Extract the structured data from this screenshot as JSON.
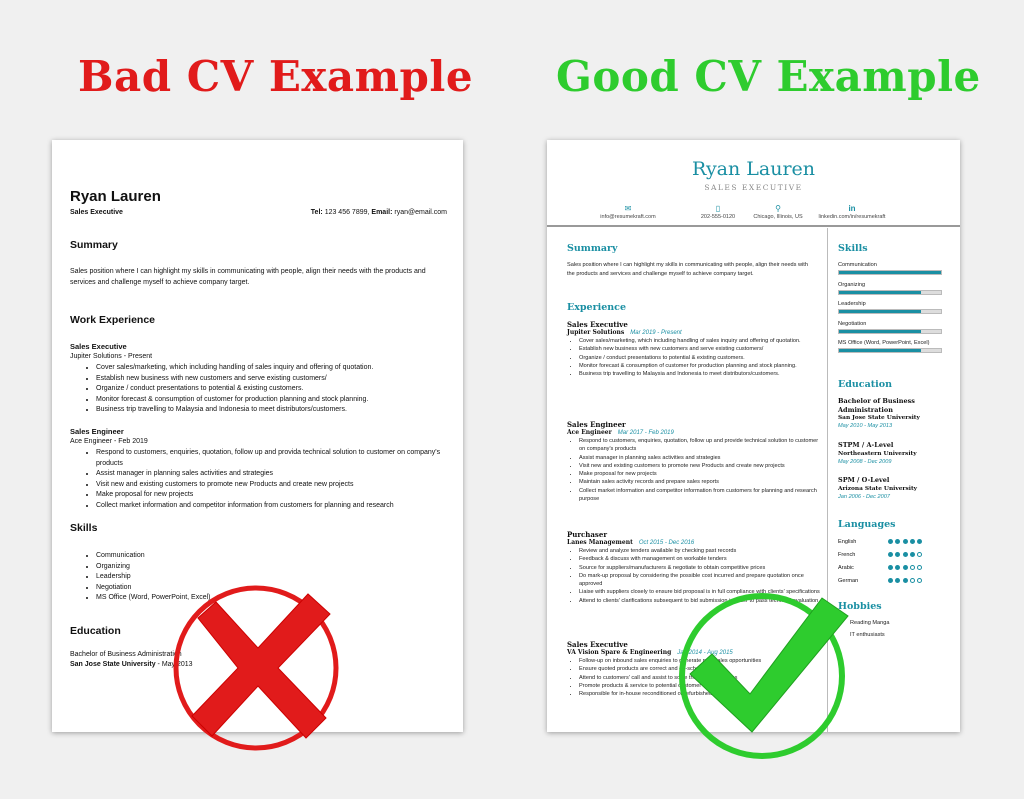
{
  "headlines": {
    "bad": "Bad CV Example",
    "good": "Good CV Example"
  },
  "colors": {
    "bad": "#e11b1b",
    "good": "#2ecc2e",
    "accent": "#1a8fa3"
  },
  "bad_cv": {
    "name": "Ryan Lauren",
    "role": "Sales Executive",
    "contact_tel_label": "Tel:",
    "contact_tel": "123 456 7899,",
    "contact_email_label": "Email:",
    "contact_email": "ryan@email.com",
    "summary_heading": "Summary",
    "summary_text": "Sales position where I can highlight my skills in communicating with people, align their needs with the products and services and challenge myself to achieve company target.",
    "work_heading": "Work Experience",
    "jobs": [
      {
        "title": "Sales Executive",
        "company_dates": "Jupiter Solutions  -  Present",
        "bullets": [
          "Cover sales/marketing, which including handling of sales inquiry and offering of quotation.",
          "Establish new business with new customers and serve existing customers/",
          "Organize / conduct presentations to potential & existing customers.",
          "Monitor forecast & consumption of customer for production planning and stock planning.",
          "Business trip travelling to Malaysia and Indonesia to meet distributors/customers."
        ]
      },
      {
        "title": "Sales Engineer",
        "company_dates": "Ace Engineer  -  Feb 2019",
        "bullets": [
          "Respond to customers, enquiries, quotation, follow up and provida technical solution to customer on company's products",
          "Assist manager in planning sales activities and strategies",
          "Visit new and existing customers to promote new Products and create new projects",
          "Make proposal for new projects",
          "Collect market information and competitor information from customers for planning and research"
        ]
      }
    ],
    "skills_heading": "Skills",
    "skills": [
      "Communication",
      "Organizing",
      "Leadership",
      "Negotiation",
      "MS Office (Word, PowerPoint, Excel)"
    ],
    "education_heading": "Education",
    "edu_degree": "Bachelor of Business Administration",
    "edu_school": "San Jose State University",
    "edu_date": "  -  May 2013"
  },
  "good_cv": {
    "name": "Ryan Lauren",
    "role": "SALES EXECUTIVE",
    "contact": [
      {
        "icon": "email-icon",
        "glyph": "✉",
        "text": "info@resumekraft.com"
      },
      {
        "icon": "phone-icon",
        "glyph": "▯",
        "text": "202-555-0120"
      },
      {
        "icon": "location-pin-icon",
        "glyph": "⚲",
        "text": "Chicago, Illinois, US"
      },
      {
        "icon": "linkedin-icon",
        "glyph": "in",
        "text": "linkedin.com/in/resumekraft"
      }
    ],
    "summary_heading": "Summary",
    "summary_text": "Sales position where I can highlight my skills in communicating with people, align their needs with the products and services and challenge myself to achieve company target.",
    "experience_heading": "Experience",
    "jobs": [
      {
        "title": "Sales Executive",
        "company": "Jupiter Solutions",
        "dates": "Mar 2019 - Present",
        "bullets": [
          "Cover sales/marketing, which including handling of sales inquiry and offering of quotation.",
          "Establish new business with new customers and serve existing customers/",
          "Organize / conduct presentations to potential & existing customers.",
          "Monitor forecast & consumption of customer for production planning and stock planning.",
          "Business trip travelling to Malaysia and Indonesia to meet distributors/customers."
        ]
      },
      {
        "title": "Sales Engineer",
        "company": "Ace Engineer",
        "dates": "Mar 2017 - Feb 2019",
        "bullets": [
          "Respond to customers, enquiries, quotation, follow up and provide technical solution to customer on company's products",
          "Assist manager in planning sales activities and strategies",
          "Visit new and existing customers to promote new Products and create new projects",
          "Make proposal for new projects",
          "Maintain sales activity records and prepare sales reports",
          "Collect market information and competitor information from customers for planning and research purpose"
        ]
      },
      {
        "title": "Purchaser",
        "company": "Lanes Management",
        "dates": "Oct 2015 - Dec 2016",
        "bullets": [
          "Review and analyze tenders available by checking past records",
          "Feedback & discuss with management on workable tenders",
          "Source for suppliers/manufacturers & negotiate to obtain competitive prices",
          "Do mark-up proposal by considering the possible cost incurred and prepare quotation once approved",
          "Liaise with suppliers closely to ensure bid proposal is in full compliance with clients' specifications",
          "Attend to clients' clarifications subsequent to bid submission in order to pass technical evaluation"
        ]
      },
      {
        "title": "Sales Executive",
        "company": "VA Vision Spare & Engineering",
        "dates": "Jan 2014 - Aug 2015",
        "bullets": [
          "Follow-up on inbound sales enquiries to generate new sales opportunities",
          "Ensure quoted products are correct and on-schedule",
          "Attend to customers' call and assist to solve their product issues",
          "Promote products & service to potential customer",
          "Responsible for in-house reconditioned or refurbished product (spare parts"
        ]
      }
    ],
    "skills_heading": "Skills",
    "skills": [
      {
        "name": "Communication",
        "level": 1.0
      },
      {
        "name": "Organizing",
        "level": 0.8
      },
      {
        "name": "Leadership",
        "level": 0.8
      },
      {
        "name": "Negotiation",
        "level": 0.8
      },
      {
        "name": "MS Office (Word, PowerPoint, Excel)",
        "level": 0.8
      }
    ],
    "education_heading": "Education",
    "education": [
      {
        "degree": "Bachelor of Business Administration",
        "school": "San Jose State University",
        "dates": "May 2010 - May 2013"
      },
      {
        "degree": "STPM / A-Level",
        "school": "Northeastern University",
        "dates": "May 2008 - Dec 2009"
      },
      {
        "degree": "SPM / O-Level",
        "school": "Arizona State University",
        "dates": "Jan 2006 - Dec 2007"
      }
    ],
    "languages_heading": "Languages",
    "languages": [
      {
        "name": "English",
        "level": 5
      },
      {
        "name": "French",
        "level": 4
      },
      {
        "name": "Arabic",
        "level": 3
      },
      {
        "name": "German",
        "level": 3
      }
    ],
    "hobbies_heading": "Hobbies",
    "hobbies": [
      "Reading Manga",
      "IT enthusiasts"
    ]
  }
}
